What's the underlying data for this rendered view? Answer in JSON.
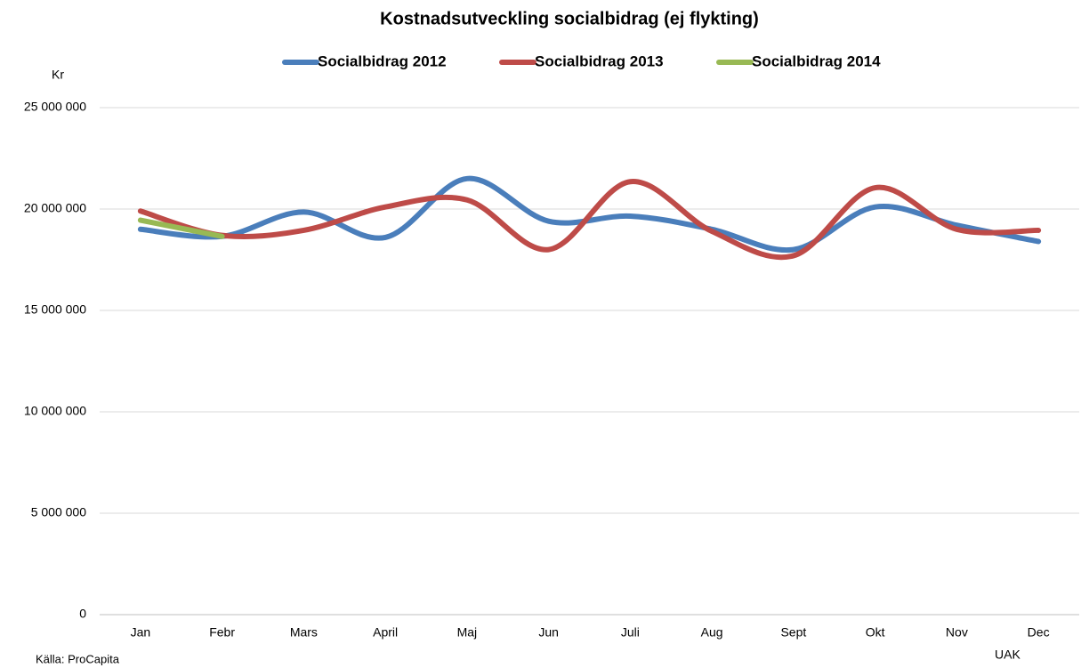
{
  "chart_data": {
    "type": "line",
    "title": "Kostnadsutveckling socialbidrag (ej flykting)",
    "y_label": "Kr",
    "source": "Källa: ProCapita",
    "note": "UAK",
    "categories": [
      "Jan",
      "Febr",
      "Mars",
      "April",
      "Maj",
      "Jun",
      "Juli",
      "Aug",
      "Sept",
      "Okt",
      "Nov",
      "Dec"
    ],
    "series": [
      {
        "name": "Socialbidrag 2012",
        "color": "#4a7ebb",
        "values": [
          19000000,
          18650000,
          19850000,
          18600000,
          21500000,
          19400000,
          19650000,
          19000000,
          18000000,
          20100000,
          19200000,
          18400000
        ]
      },
      {
        "name": "Socialbidrag 2013",
        "color": "#be4b48",
        "values": [
          19900000,
          18700000,
          18950000,
          20100000,
          20450000,
          18000000,
          21350000,
          18900000,
          17700000,
          21050000,
          19000000,
          18950000
        ]
      },
      {
        "name": "Socialbidrag 2014",
        "color": "#98b954",
        "values": [
          19450000,
          18650000,
          null,
          null,
          null,
          null,
          null,
          null,
          null,
          null,
          null,
          null
        ]
      }
    ],
    "ylim": [
      0,
      25000000
    ],
    "yticks": [
      {
        "value": 0,
        "label": "0"
      },
      {
        "value": 5000000,
        "label": "5 000 000"
      },
      {
        "value": 10000000,
        "label": "10 000 000"
      },
      {
        "value": 15000000,
        "label": "15 000 000"
      },
      {
        "value": 20000000,
        "label": "20 000 000"
      },
      {
        "value": 25000000,
        "label": "25 000 000"
      }
    ],
    "grid": true,
    "smooth": true,
    "legend": "top"
  }
}
